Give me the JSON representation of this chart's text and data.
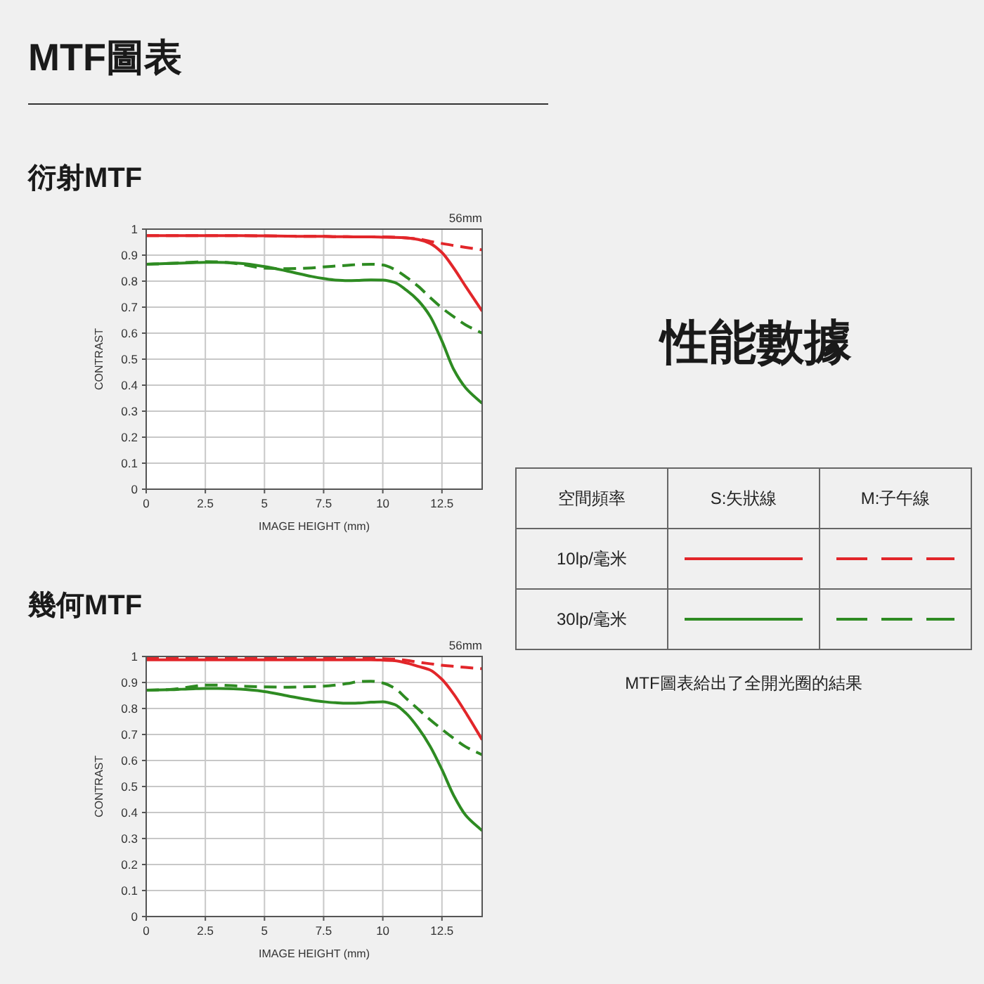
{
  "chart_data": [
    {
      "type": "other",
      "title": "MTF圖表"
    },
    {
      "type": "line",
      "title": "衍射MTF",
      "xlabel": "IMAGE HEIGHT (mm)",
      "ylabel": "CONTRAST",
      "annotations": [
        "56mm"
      ],
      "x": [
        0,
        1,
        2,
        2.5,
        3,
        4,
        5,
        6,
        7,
        7.5,
        8,
        8.5,
        9,
        9.5,
        10,
        10.5,
        11,
        11.5,
        12,
        12.5,
        13,
        13.5,
        14.2
      ],
      "series": [
        {
          "color": "#e2262a",
          "line_style": "solid",
          "values": [
            0.975,
            0.975,
            0.975,
            0.975,
            0.975,
            0.975,
            0.974,
            0.973,
            0.972,
            0.972,
            0.971,
            0.971,
            0.97,
            0.97,
            0.969,
            0.968,
            0.966,
            0.96,
            0.945,
            0.91,
            0.85,
            0.78,
            0.685
          ]
        },
        {
          "color": "#e2262a",
          "line_style": "dashed",
          "values": [
            0.975,
            0.975,
            0.975,
            0.975,
            0.975,
            0.975,
            0.974,
            0.973,
            0.972,
            0.972,
            0.971,
            0.971,
            0.97,
            0.97,
            0.97,
            0.969,
            0.966,
            0.962,
            0.953,
            0.945,
            0.937,
            0.93,
            0.92
          ]
        },
        {
          "color": "#2e8b22",
          "line_style": "solid",
          "values": [
            0.865,
            0.868,
            0.871,
            0.872,
            0.872,
            0.868,
            0.856,
            0.838,
            0.818,
            0.81,
            0.804,
            0.802,
            0.803,
            0.805,
            0.804,
            0.795,
            0.765,
            0.725,
            0.665,
            0.57,
            0.46,
            0.39,
            0.33
          ]
        },
        {
          "color": "#2e8b22",
          "line_style": "dashed",
          "values": [
            0.865,
            0.868,
            0.873,
            0.875,
            0.874,
            0.865,
            0.85,
            0.848,
            0.851,
            0.855,
            0.858,
            0.861,
            0.864,
            0.865,
            0.862,
            0.845,
            0.815,
            0.78,
            0.737,
            0.697,
            0.663,
            0.632,
            0.6
          ]
        }
      ],
      "xlim": [
        0,
        14.2
      ],
      "xticks": [
        0,
        2.5,
        5,
        7.5,
        10,
        12.5
      ],
      "ylim": [
        0,
        1
      ],
      "yticks": [
        0,
        0.1,
        0.2,
        0.3,
        0.4,
        0.5,
        0.6,
        0.7,
        0.8,
        0.9,
        1
      ],
      "grid": true
    },
    {
      "type": "other",
      "title": "性能數據",
      "legend_title": "空間頻率",
      "categories": [
        "S:矢狀線",
        "M:子午線"
      ],
      "y_categories": [
        "10lp/毫米",
        "30lp/毫米"
      ],
      "annotations": [
        "MTF圖表給出了全開光圈的結果"
      ]
    },
    {
      "type": "line",
      "title": "幾何MTF",
      "xlabel": "IMAGE HEIGHT (mm)",
      "ylabel": "CONTRAST",
      "annotations": [
        "56mm"
      ],
      "x": [
        0,
        1,
        2,
        2.5,
        3,
        4,
        5,
        6,
        7,
        7.5,
        8,
        8.5,
        9,
        9.5,
        10,
        10.5,
        11,
        11.5,
        12,
        12.5,
        13,
        13.5,
        14.2
      ],
      "series": [
        {
          "color": "#e2262a",
          "line_style": "solid",
          "values": [
            0.987,
            0.987,
            0.987,
            0.987,
            0.987,
            0.987,
            0.987,
            0.987,
            0.987,
            0.987,
            0.987,
            0.987,
            0.987,
            0.987,
            0.986,
            0.984,
            0.975,
            0.962,
            0.948,
            0.912,
            0.855,
            0.785,
            0.68
          ]
        },
        {
          "color": "#e2262a",
          "line_style": "dashed",
          "values": [
            0.992,
            0.992,
            0.992,
            0.992,
            0.992,
            0.992,
            0.992,
            0.992,
            0.992,
            0.992,
            0.992,
            0.992,
            0.992,
            0.992,
            0.991,
            0.99,
            0.985,
            0.978,
            0.972,
            0.966,
            0.962,
            0.958,
            0.953
          ]
        },
        {
          "color": "#2e8b22",
          "line_style": "solid",
          "values": [
            0.87,
            0.872,
            0.876,
            0.877,
            0.877,
            0.874,
            0.865,
            0.848,
            0.832,
            0.826,
            0.822,
            0.82,
            0.821,
            0.824,
            0.826,
            0.815,
            0.78,
            0.725,
            0.655,
            0.565,
            0.465,
            0.39,
            0.33
          ]
        },
        {
          "color": "#2e8b22",
          "line_style": "dashed",
          "values": [
            0.87,
            0.873,
            0.885,
            0.89,
            0.89,
            0.886,
            0.883,
            0.882,
            0.884,
            0.886,
            0.89,
            0.896,
            0.903,
            0.905,
            0.898,
            0.878,
            0.838,
            0.797,
            0.757,
            0.72,
            0.685,
            0.653,
            0.622
          ]
        }
      ],
      "xlim": [
        0,
        14.2
      ],
      "xticks": [
        0,
        2.5,
        5,
        7.5,
        10,
        12.5
      ],
      "ylim": [
        0,
        1
      ],
      "yticks": [
        0,
        0.1,
        0.2,
        0.3,
        0.4,
        0.5,
        0.6,
        0.7,
        0.8,
        0.9,
        1
      ],
      "grid": true
    }
  ]
}
